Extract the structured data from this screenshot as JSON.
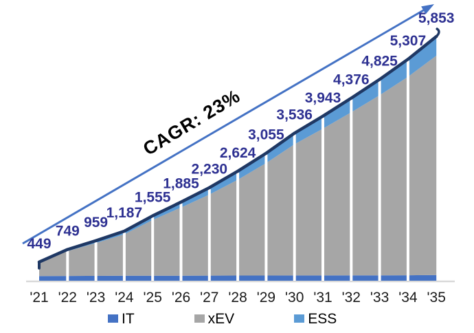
{
  "chart_data": {
    "type": "area",
    "stacked": true,
    "title": "",
    "annotation": "CAGR: 23%",
    "categories": [
      "'21",
      "'22",
      "'23",
      "'24",
      "'25",
      "'26",
      "'27",
      "'28",
      "'29",
      "'30",
      "'31",
      "'32",
      "'33",
      "'34",
      "'35"
    ],
    "totals": [
      449,
      749,
      959,
      1187,
      1555,
      1885,
      2230,
      2624,
      3055,
      3536,
      3943,
      4376,
      4825,
      5307,
      5853
    ],
    "total_labels": [
      "449",
      "749",
      "959",
      "1,187",
      "1,555",
      "1,885",
      "2,230",
      "2,624",
      "3,055",
      "3,536",
      "3,943",
      "4,376",
      "4,825",
      "5,307",
      "5,853"
    ],
    "series": [
      {
        "name": "IT",
        "color": "#4472C4",
        "values": [
          110,
          113,
          116,
          118,
          120,
          121,
          122,
          123,
          124,
          125,
          126,
          127,
          128,
          130,
          135
        ]
      },
      {
        "name": "xEV",
        "color": "#A6A6A6",
        "values": [
          314,
          596,
          788,
          994,
          1335,
          1634,
          1943,
          2296,
          2696,
          3146,
          3517,
          3909,
          4317,
          4757,
          5258
        ]
      },
      {
        "name": "ESS",
        "color": "#5B9BD5",
        "values": [
          25,
          40,
          55,
          75,
          100,
          130,
          165,
          205,
          235,
          265,
          300,
          340,
          380,
          420,
          460
        ]
      }
    ],
    "legend_position": "bottom",
    "grid": false,
    "y_axis_visible": false,
    "ylim": [
      0,
      5900
    ],
    "colors": {
      "total_line": "#1F3864",
      "value_label": "#2E3192",
      "trend_arrow": "#4472C4",
      "axis_line": "#D9D9D9",
      "separator": "#FFFFFF",
      "tick_label": "#1A1A1A",
      "background": "#FFFFFF"
    }
  }
}
